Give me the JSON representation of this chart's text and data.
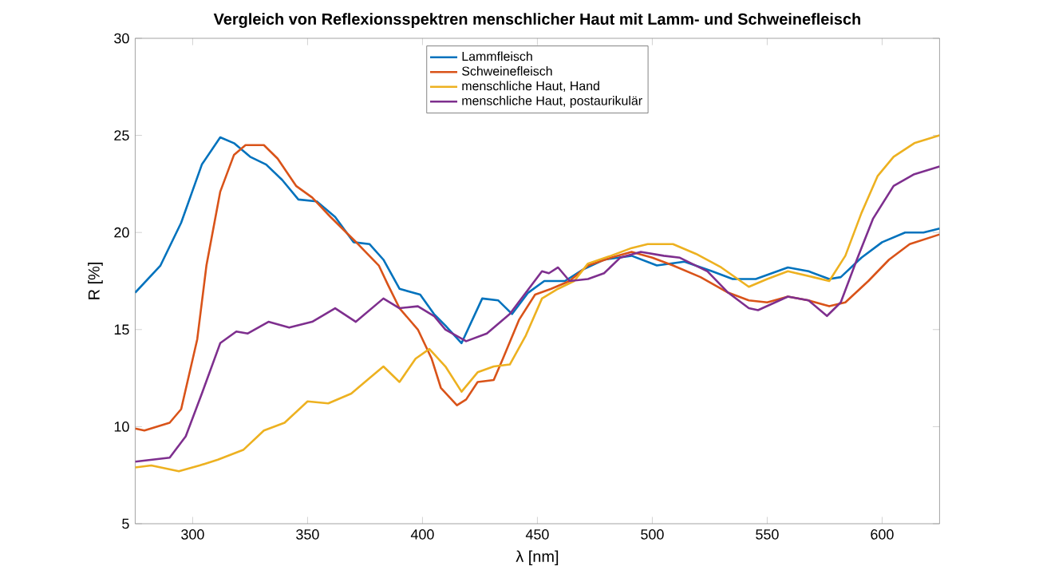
{
  "chart_data": {
    "type": "line",
    "title": "Vergleich von Reflexionsspektren menschlicher Haut mit Lamm- und Schweinefleisch",
    "xlabel": "λ [nm]",
    "ylabel": "R [%]",
    "xlim": [
      275,
      625
    ],
    "ylim": [
      5,
      30
    ],
    "xticks": [
      300,
      350,
      400,
      450,
      500,
      550,
      600
    ],
    "yticks": [
      5,
      10,
      15,
      20,
      25,
      30
    ],
    "grid": false,
    "legend": "top",
    "marker": "none",
    "line_style": "solid",
    "series": [
      {
        "name": "Lammfleisch",
        "color": "#0072bd",
        "x": [
          275,
          286,
          295,
          304,
          312,
          318,
          325,
          332,
          339,
          346,
          354,
          362,
          370,
          377,
          383,
          390,
          399,
          405,
          410,
          417,
          426,
          433,
          439,
          446,
          453,
          462,
          470,
          479,
          491,
          502,
          514,
          526,
          535,
          545,
          559,
          568,
          577,
          582,
          591,
          600,
          610,
          618,
          625
        ],
        "values": [
          16.9,
          18.3,
          20.5,
          23.5,
          24.9,
          24.6,
          23.9,
          23.5,
          22.7,
          21.7,
          21.6,
          20.8,
          19.5,
          19.4,
          18.6,
          17.1,
          16.8,
          15.8,
          15.2,
          14.3,
          16.6,
          16.5,
          15.8,
          16.9,
          17.5,
          17.5,
          18.1,
          18.6,
          18.8,
          18.3,
          18.5,
          18.0,
          17.6,
          17.6,
          18.2,
          18.0,
          17.6,
          17.7,
          18.7,
          19.5,
          20.0,
          20.0,
          20.2
        ]
      },
      {
        "name": "Schweinefleisch",
        "color": "#d95319",
        "x": [
          275,
          279,
          290,
          295,
          302,
          306,
          312,
          318,
          323,
          331,
          337,
          345,
          352,
          360,
          372,
          381,
          385,
          390,
          398,
          404,
          408,
          415,
          419,
          424,
          431,
          435,
          442,
          449,
          456,
          464,
          472,
          482,
          491,
          500,
          509,
          521,
          533,
          542,
          550,
          559,
          568,
          577,
          584,
          594,
          603,
          612,
          625
        ],
        "values": [
          9.9,
          9.8,
          10.2,
          10.9,
          14.5,
          18.3,
          22.1,
          24.0,
          24.5,
          24.5,
          23.8,
          22.4,
          21.8,
          20.8,
          19.4,
          18.3,
          17.3,
          16.1,
          15.0,
          13.5,
          12.0,
          11.1,
          11.4,
          12.3,
          12.4,
          13.5,
          15.5,
          16.8,
          17.1,
          17.5,
          18.3,
          18.7,
          19.0,
          18.7,
          18.3,
          17.7,
          16.9,
          16.5,
          16.4,
          16.7,
          16.5,
          16.2,
          16.4,
          17.5,
          18.6,
          19.4,
          19.9
        ]
      },
      {
        "name": "menschliche Haut, Hand",
        "color": "#edb120",
        "x": [
          275,
          282,
          294,
          303,
          311,
          322,
          331,
          340,
          350,
          359,
          369,
          377,
          383,
          390,
          397,
          403,
          410,
          417,
          424,
          431,
          438,
          445,
          452,
          459,
          466,
          472,
          482,
          491,
          498,
          509,
          519,
          530,
          542,
          550,
          559,
          570,
          577,
          584,
          591,
          598,
          605,
          614,
          625
        ],
        "values": [
          7.9,
          8.0,
          7.7,
          8.0,
          8.3,
          8.8,
          9.8,
          10.2,
          11.3,
          11.2,
          11.7,
          12.5,
          13.1,
          12.3,
          13.5,
          14.0,
          13.1,
          11.8,
          12.8,
          13.1,
          13.2,
          14.7,
          16.6,
          17.1,
          17.5,
          18.4,
          18.8,
          19.2,
          19.4,
          19.4,
          18.9,
          18.2,
          17.2,
          17.6,
          18.0,
          17.7,
          17.5,
          18.8,
          21.0,
          22.9,
          23.9,
          24.6,
          25.0
        ]
      },
      {
        "name": "menschliche Haut, postaurikulär",
        "color": "#7e2f8e",
        "x": [
          275,
          290,
          297,
          304,
          312,
          319,
          324,
          333,
          342,
          352,
          362,
          371,
          383,
          390,
          398,
          405,
          410,
          419,
          428,
          438,
          445,
          452,
          455,
          459,
          464,
          472,
          479,
          486,
          495,
          505,
          512,
          524,
          533,
          542,
          546,
          559,
          568,
          576,
          582,
          589,
          596,
          605,
          614,
          625
        ],
        "values": [
          8.2,
          8.4,
          9.5,
          11.7,
          14.3,
          14.9,
          14.8,
          15.4,
          15.1,
          15.4,
          16.1,
          15.4,
          16.6,
          16.1,
          16.2,
          15.7,
          15.0,
          14.4,
          14.8,
          15.8,
          16.9,
          18.0,
          17.9,
          18.2,
          17.5,
          17.6,
          17.9,
          18.7,
          19.0,
          18.8,
          18.7,
          18.0,
          16.9,
          16.1,
          16.0,
          16.7,
          16.5,
          15.7,
          16.4,
          18.6,
          20.7,
          22.4,
          23.0,
          23.4
        ]
      }
    ]
  }
}
